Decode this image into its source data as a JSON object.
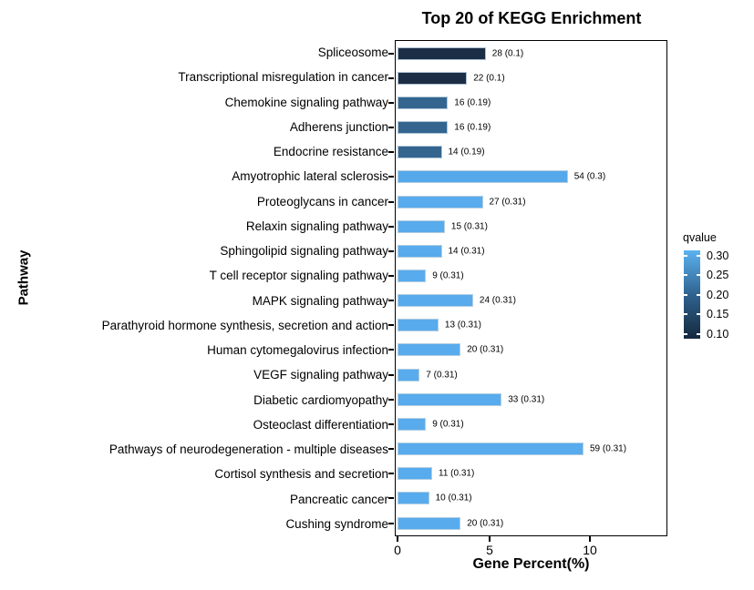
{
  "title": "Top 20 of KEGG Enrichment",
  "axes": {
    "x_label": "Gene Percent(%)",
    "y_label": "Pathway",
    "x_tick_labels": [
      "0",
      "5",
      "10"
    ]
  },
  "legend": {
    "title": "qvalue",
    "tick_labels": [
      "0.30",
      "0.25",
      "0.20",
      "0.15",
      "0.10"
    ],
    "gradient_top_color": "#5cb2f0",
    "gradient_bottom_color": "#15283c"
  },
  "chart_data": {
    "type": "bar",
    "orientation": "horizontal",
    "title": "Top 20 of KEGG Enrichment",
    "xlabel": "Gene Percent(%)",
    "ylabel": "Pathway",
    "xlim": [
      0,
      14.1
    ],
    "x_ticks": [
      0,
      5,
      10
    ],
    "grid": false,
    "legend_position": "right",
    "color_scale": {
      "name": "qvalue",
      "min": 0.1,
      "max": 0.31,
      "min_color": "#15283c",
      "max_color": "#5cb2f0"
    },
    "categories": [
      "Spliceosome",
      "Transcriptional misregulation in cancer",
      "Chemokine signaling pathway",
      "Adherens junction",
      "Endocrine resistance",
      "Amyotrophic lateral sclerosis",
      "Proteoglycans in cancer",
      "Relaxin signaling pathway",
      "Sphingolipid signaling pathway",
      "T cell receptor signaling pathway",
      "MAPK signaling pathway",
      "Parathyroid hormone synthesis, secretion and action",
      "Human cytomegalovirus infection",
      "VEGF signaling pathway",
      "Diabetic cardiomyopathy",
      "Osteoclast differentiation",
      "Pathways of neurodegeneration - multiple diseases",
      "Cortisol synthesis and secretion",
      "Pancreatic cancer",
      "Cushing syndrome"
    ],
    "gene_counts": [
      28,
      22,
      16,
      16,
      14,
      54,
      27,
      15,
      14,
      9,
      24,
      13,
      20,
      7,
      33,
      9,
      59,
      11,
      10,
      20
    ],
    "qvalues": [
      0.1,
      0.1,
      0.19,
      0.19,
      0.19,
      0.3,
      0.31,
      0.31,
      0.31,
      0.31,
      0.31,
      0.31,
      0.31,
      0.31,
      0.31,
      0.31,
      0.31,
      0.31,
      0.31,
      0.31
    ],
    "gene_percent": [
      4.59,
      3.61,
      2.62,
      2.62,
      2.3,
      8.85,
      4.43,
      2.46,
      2.3,
      1.48,
      3.93,
      2.13,
      3.28,
      1.15,
      5.41,
      1.48,
      9.67,
      1.8,
      1.64,
      3.28
    ],
    "bar_labels": [
      "28 (0.1)",
      "22 (0.1)",
      "16 (0.19)",
      "16 (0.19)",
      "14 (0.19)",
      "54 (0.3)",
      "27 (0.31)",
      "15 (0.31)",
      "14 (0.31)",
      "9 (0.31)",
      "24 (0.31)",
      "13 (0.31)",
      "20 (0.31)",
      "7 (0.31)",
      "33 (0.31)",
      "9 (0.31)",
      "59 (0.31)",
      "11 (0.31)",
      "10 (0.31)",
      "20 (0.31)"
    ],
    "bar_colors": [
      "#1b2e45",
      "#1b2e45",
      "#33658f",
      "#33658f",
      "#33658f",
      "#55a8ea",
      "#58abec",
      "#58abec",
      "#58abec",
      "#58abec",
      "#58abec",
      "#58abec",
      "#58abec",
      "#58abec",
      "#58abec",
      "#58abec",
      "#58abec",
      "#58abec",
      "#58abec",
      "#58abec"
    ]
  }
}
